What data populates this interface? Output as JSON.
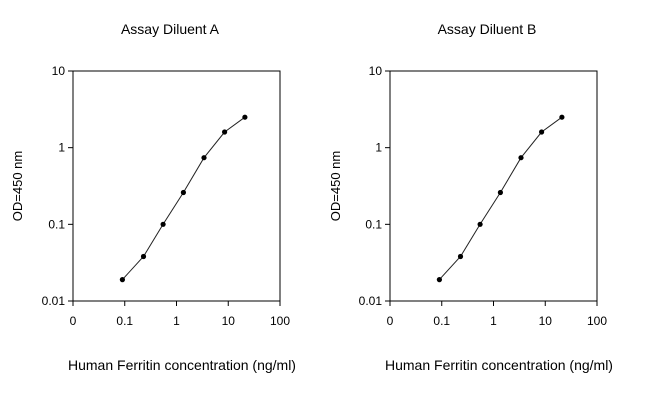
{
  "chart_data": [
    {
      "type": "line",
      "title": "Assay Diluent A",
      "xlabel": "Human Ferritin concentration (ng/ml)",
      "ylabel": "OD=450 nm",
      "x_scale": "log",
      "y_scale": "log",
      "xlim": [
        0,
        100
      ],
      "ylim": [
        0.01,
        10
      ],
      "x_ticks": [
        "0",
        "0.1",
        "1",
        "10",
        "100"
      ],
      "y_ticks": [
        "10",
        "1",
        "0.1",
        "0.01"
      ],
      "grid": false,
      "legend": "none",
      "series": [
        {
          "x": [
            0.09,
            0.23,
            0.55,
            1.36,
            3.4,
            8.5,
            21.0
          ],
          "y": [
            0.019,
            0.038,
            0.1,
            0.26,
            0.74,
            1.6,
            2.5
          ]
        }
      ]
    },
    {
      "type": "line",
      "title": "Assay Diluent B",
      "xlabel": "Human Ferritin concentration (ng/ml)",
      "ylabel": "OD=450 nm",
      "x_scale": "log",
      "y_scale": "log",
      "xlim": [
        0,
        100
      ],
      "ylim": [
        0.01,
        10
      ],
      "x_ticks": [
        "0",
        "0.1",
        "1",
        "10",
        "100"
      ],
      "y_ticks": [
        "10",
        "1",
        "0.1",
        "0.01"
      ],
      "grid": false,
      "legend": "none",
      "series": [
        {
          "x": [
            0.09,
            0.23,
            0.55,
            1.36,
            3.4,
            8.5,
            21.0
          ],
          "y": [
            0.019,
            0.038,
            0.1,
            0.26,
            0.74,
            1.6,
            2.5
          ]
        }
      ]
    }
  ],
  "colors": {
    "line": "#222222",
    "marker": "#000000",
    "axis": "#000000"
  }
}
